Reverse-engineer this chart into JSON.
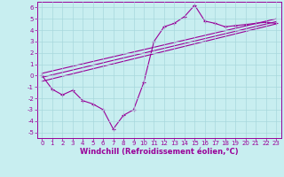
{
  "background_color": "#c8eef0",
  "grid_color": "#a8d8dc",
  "line_color": "#990099",
  "xlim": [
    -0.5,
    23.5
  ],
  "ylim": [
    -5.5,
    6.5
  ],
  "yticks": [
    -5,
    -4,
    -3,
    -2,
    -1,
    0,
    1,
    2,
    3,
    4,
    5,
    6
  ],
  "xticks": [
    0,
    1,
    2,
    3,
    4,
    5,
    6,
    7,
    8,
    9,
    10,
    11,
    12,
    13,
    14,
    15,
    16,
    17,
    18,
    19,
    20,
    21,
    22,
    23
  ],
  "xlabel": "Windchill (Refroidissement éolien,°C)",
  "series1_x": [
    0,
    1,
    2,
    3,
    4,
    5,
    6,
    7,
    8,
    9,
    10,
    11,
    12,
    13,
    14,
    15,
    16,
    17,
    18,
    19,
    20,
    21,
    22,
    23
  ],
  "series1_y": [
    0,
    -1.2,
    -1.7,
    -1.3,
    -2.2,
    -2.5,
    -3.0,
    -4.7,
    -3.5,
    -3.0,
    -0.6,
    3.0,
    4.3,
    4.6,
    5.2,
    6.2,
    4.8,
    4.6,
    4.3,
    4.4,
    4.5,
    4.6,
    4.7,
    4.6
  ],
  "series2_x": [
    0,
    23
  ],
  "series2_y": [
    -0.5,
    4.55
  ],
  "series3_x": [
    0,
    23
  ],
  "series3_y": [
    -0.15,
    4.75
  ],
  "series4_x": [
    0,
    23
  ],
  "series4_y": [
    0.2,
    5.0
  ],
  "tick_fontsize": 5.0,
  "label_fontsize": 6.0
}
